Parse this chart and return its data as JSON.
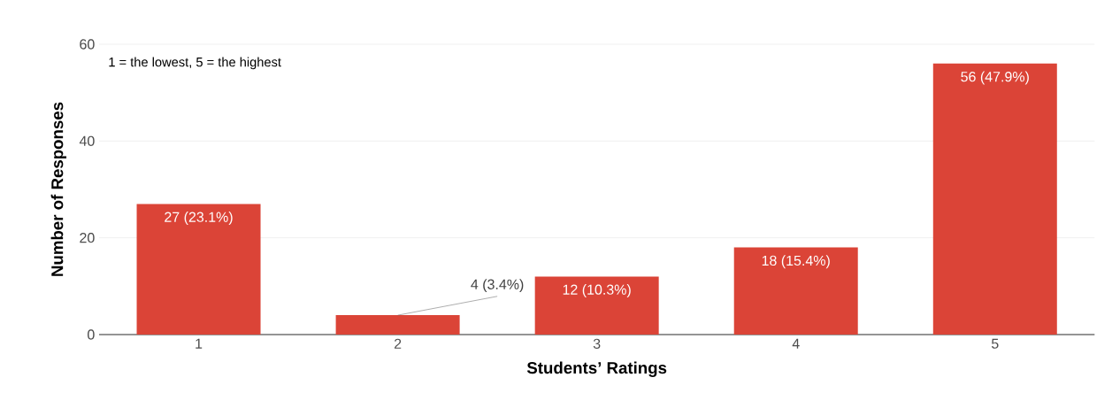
{
  "chart_data": {
    "type": "bar",
    "xlabel": "Students’ Ratings",
    "ylabel": "Number of Responses",
    "categories": [
      "1",
      "2",
      "3",
      "4",
      "5"
    ],
    "values": [
      27,
      4,
      12,
      18,
      56
    ],
    "value_labels": [
      "27 (23.1%)",
      "4 (3.4%)",
      "12 (10.3%)",
      "18 (15.4%)",
      "56 (47.9%)"
    ],
    "color": "#db4437",
    "ylim": [
      0,
      60
    ],
    "yticks": [
      0,
      20,
      40,
      60
    ],
    "grid": "y",
    "annotations": [
      "1 = the lowest, 5 = the highest"
    ]
  }
}
